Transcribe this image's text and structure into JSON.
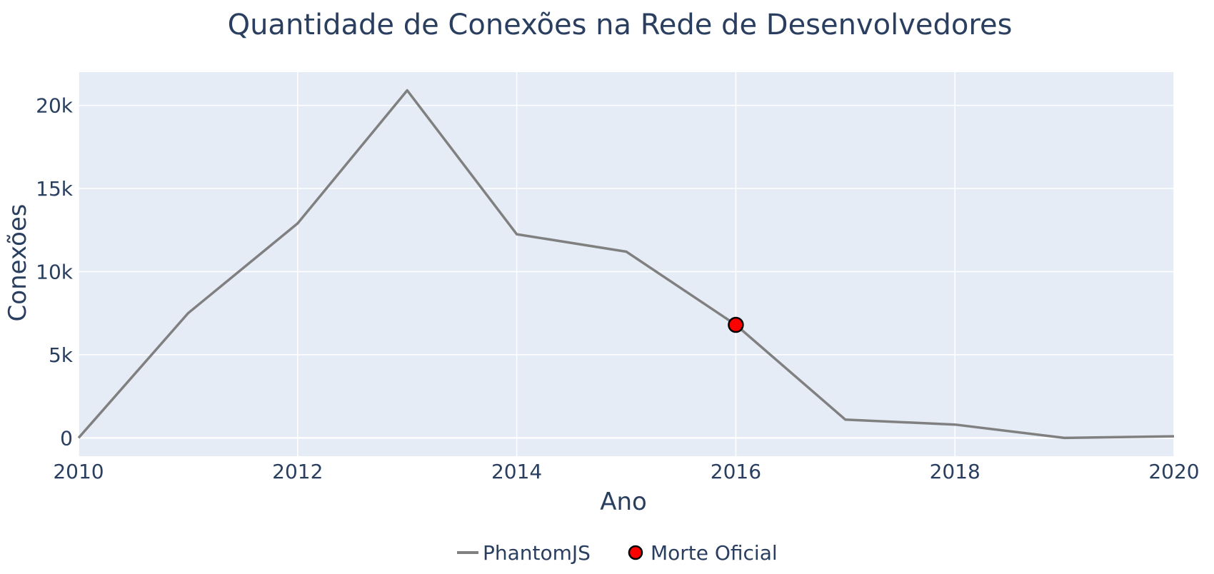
{
  "chart_data": {
    "type": "line",
    "title": "Quantidade de Conexões na Rede de Desenvolvedores",
    "xlabel": "Ano",
    "ylabel": "Conexões",
    "xlim": [
      2010,
      2020
    ],
    "ylim": [
      -1100,
      22000
    ],
    "x_ticks": [
      2010,
      2012,
      2014,
      2016,
      2018,
      2020
    ],
    "y_ticks": [
      0,
      5000,
      10000,
      15000,
      20000
    ],
    "y_tick_labels": [
      "0",
      "5k",
      "10k",
      "15k",
      "20k"
    ],
    "grid": true,
    "legend_position": "bottom-center",
    "series": [
      {
        "name": "PhantomJS",
        "color": "#808080",
        "mode": "line",
        "x": [
          2010,
          2011,
          2012,
          2013,
          2014,
          2015,
          2016,
          2017,
          2018,
          2019,
          2020
        ],
        "y": [
          0,
          7500,
          12900,
          20900,
          12250,
          11200,
          6800,
          1100,
          800,
          0,
          100
        ]
      },
      {
        "name": "Morte Oficial",
        "color": "#ff0000",
        "marker_outline": "#000000",
        "mode": "marker",
        "x": [
          2016
        ],
        "y": [
          6800
        ]
      }
    ],
    "colors": {
      "plot_background": "#e5ecf6",
      "grid": "#ffffff",
      "text": "#2a3f5f"
    }
  }
}
